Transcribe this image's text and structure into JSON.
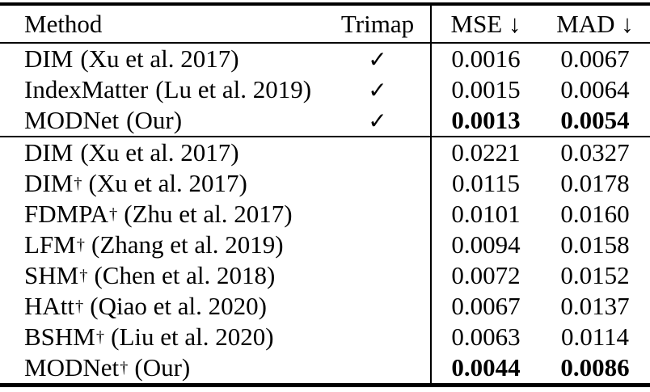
{
  "table": {
    "header": {
      "method": "Method",
      "trimap": "Trimap",
      "mse": "MSE ↓",
      "mad": "MAD ↓"
    },
    "rows": [
      {
        "method": "DIM",
        "dagger": "",
        "cite": "(Xu et al. 2017)",
        "trimap": "✓",
        "mse": "0.0016",
        "mad": "0.0067"
      },
      {
        "method": "IndexMatter",
        "dagger": "",
        "cite": "(Lu et al. 2019)",
        "trimap": "✓",
        "mse": "0.0015",
        "mad": "0.0064"
      },
      {
        "method": "MODNet",
        "dagger": "",
        "cite": "(Our)",
        "trimap": "✓",
        "mse": "0.0013",
        "mad": "0.0054"
      },
      {
        "method": "DIM",
        "dagger": "",
        "cite": "(Xu et al. 2017)",
        "trimap": "",
        "mse": "0.0221",
        "mad": "0.0327"
      },
      {
        "method": "DIM",
        "dagger": "†",
        "cite": "(Xu et al. 2017)",
        "trimap": "",
        "mse": "0.0115",
        "mad": "0.0178"
      },
      {
        "method": "FDMPA",
        "dagger": "†",
        "cite": "(Zhu et al. 2017)",
        "trimap": "",
        "mse": "0.0101",
        "mad": "0.0160"
      },
      {
        "method": "LFM",
        "dagger": "†",
        "cite": "(Zhang et al. 2019)",
        "trimap": "",
        "mse": "0.0094",
        "mad": "0.0158"
      },
      {
        "method": "SHM",
        "dagger": "†",
        "cite": "(Chen et al. 2018)",
        "trimap": "",
        "mse": "0.0072",
        "mad": "0.0152"
      },
      {
        "method": "HAtt",
        "dagger": "†",
        "cite": "(Qiao et al. 2020)",
        "trimap": "",
        "mse": "0.0067",
        "mad": "0.0137"
      },
      {
        "method": "BSHM",
        "dagger": "†",
        "cite": "(Liu et al. 2020)",
        "trimap": "",
        "mse": "0.0063",
        "mad": "0.0114"
      },
      {
        "method": "MODNet",
        "dagger": "†",
        "cite": "(Our)",
        "trimap": "",
        "mse": "0.0044",
        "mad": "0.0086"
      }
    ]
  }
}
